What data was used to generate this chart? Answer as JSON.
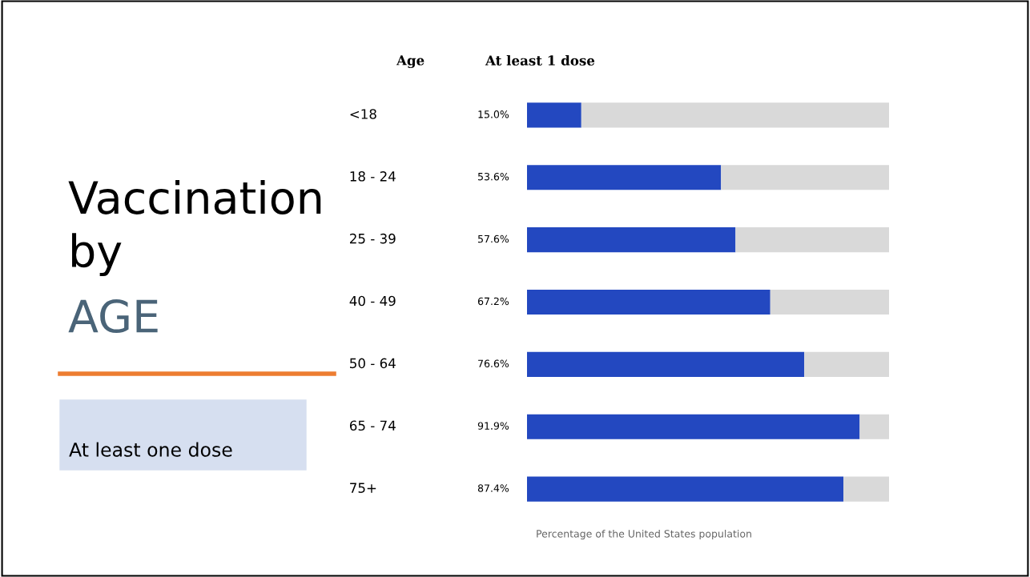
{
  "chart_data": {
    "type": "bar",
    "orientation": "horizontal",
    "stacked": true,
    "title": "Vaccination by",
    "subtitle": "AGE",
    "ylabel": "Age",
    "xlabel": "Percentage of the United States population",
    "categories": [
      "<18",
      "18 - 24",
      "25 - 39",
      "40 - 49",
      "50 - 64",
      "65 - 74",
      "75+"
    ],
    "series": [
      {
        "color": "#2348c0",
        "values": [
          15.0,
          53.6,
          57.6,
          67.2,
          76.6,
          91.9,
          87.4
        ],
        "value_labels": [
          "15.0%",
          "53.6%",
          "57.6%",
          "67.2%",
          "76.6%",
          "91.9%",
          "87.4%"
        ]
      },
      {
        "color": "#d9d9d9",
        "values": [
          85.0,
          46.4,
          42.4,
          32.8,
          23.4,
          8.1,
          12.6
        ]
      }
    ],
    "xlim": [
      0,
      100
    ],
    "tick_labels": false,
    "grid": false,
    "legend": false,
    "annotations": [
      "At least 1 dose",
      "At least one dose"
    ]
  }
}
